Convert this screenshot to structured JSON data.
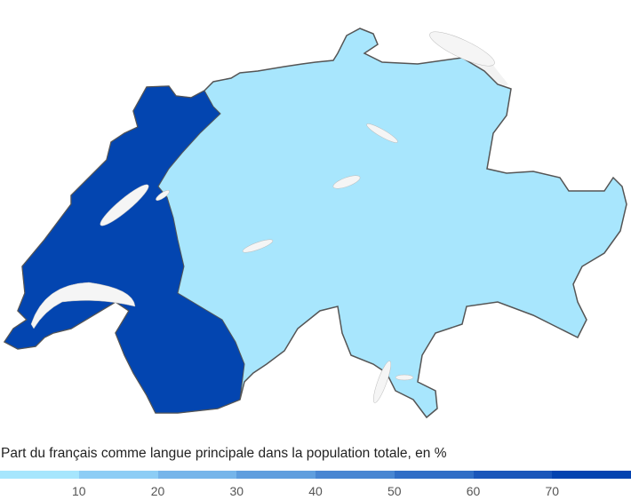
{
  "legend": {
    "title": "Part du français comme langue principale dans la population totale, en %",
    "bins": [
      "#a6e6fd",
      "#8dcdf5",
      "#76b5ea",
      "#5f9ede",
      "#4886d2",
      "#306ec6",
      "#1a56ba",
      "#0343b0"
    ],
    "ticks": [
      "10",
      "20",
      "30",
      "40",
      "50",
      "60",
      "70"
    ]
  },
  "map": {
    "region": "Switzerland",
    "colors": {
      "low": "#a8e6fd",
      "high": "#0345b0",
      "lake": "#f5f5f5",
      "border": "#555555",
      "outside": "#f2f2f2"
    },
    "french_speaking_value_bin": "70+",
    "other_value_bin": "0-10"
  }
}
